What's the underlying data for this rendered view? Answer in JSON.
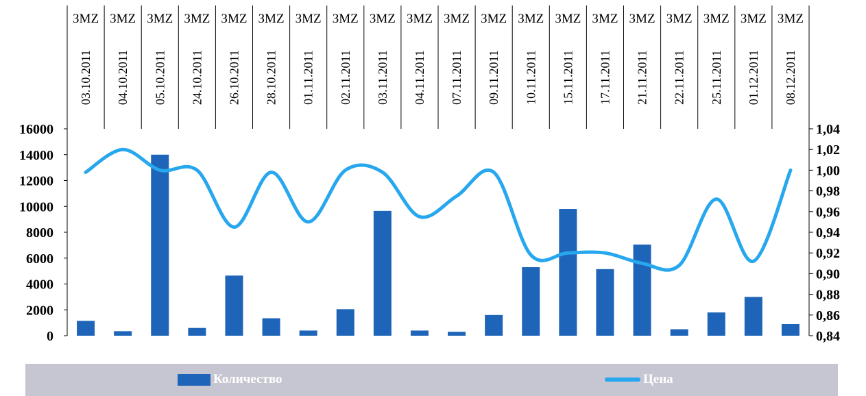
{
  "chart_data": {
    "type": "bar+line",
    "categories": [
      "03.10.2011",
      "04.10.2011",
      "05.10.2011",
      "24.10.2011",
      "26.10.2011",
      "28.10.2011",
      "01.11.2011",
      "02.11.2011",
      "03.11.2011",
      "04.11.2011",
      "07.11.2011",
      "09.11.2011",
      "10.11.2011",
      "15.11.2011",
      "17.11.2011",
      "21.11.2011",
      "22.11.2011",
      "25.11.2011",
      "01.12.2011",
      "08.12.2011"
    ],
    "category_headers": [
      "ЗМZ",
      "ЗМZ",
      "ЗМZ",
      "ЗМZ",
      "ЗМZ",
      "ЗМZ",
      "ЗМZ",
      "ЗМZ",
      "ЗМZ",
      "ЗМZ",
      "ЗМZ",
      "ЗМZ",
      "ЗМZ",
      "ЗМZ",
      "ЗМZ",
      "ЗМZ",
      "ЗМZ",
      "ЗМZ",
      "ЗМZ",
      "ЗМZ"
    ],
    "series": [
      {
        "name": "Количество",
        "type": "bar",
        "axis": "left",
        "values": [
          1150,
          350,
          14000,
          600,
          4650,
          1350,
          400,
          2050,
          9650,
          400,
          300,
          1600,
          5300,
          9800,
          5150,
          7050,
          500,
          1800,
          3000,
          900
        ]
      },
      {
        "name": "Цена",
        "type": "line",
        "axis": "right",
        "values": [
          0.998,
          1.02,
          1.0,
          1.0,
          0.945,
          0.998,
          0.95,
          1.0,
          0.998,
          0.955,
          0.975,
          0.998,
          0.918,
          0.92,
          0.92,
          0.91,
          0.908,
          0.972,
          0.912,
          1.0
        ]
      }
    ],
    "left_axis": {
      "min": 0,
      "max": 16000,
      "ticks": [
        "0",
        "2000",
        "4000",
        "6000",
        "8000",
        "10000",
        "12000",
        "14000",
        "16000"
      ]
    },
    "right_axis": {
      "min": 0.84,
      "max": 1.04,
      "ticks": [
        "0,84",
        "0,86",
        "0,88",
        "0,90",
        "0,92",
        "0,94",
        "0,96",
        "0,98",
        "1,00",
        "1,02",
        "1,04"
      ]
    },
    "legend_position": "bottom",
    "colors": {
      "bar": "#1e64b8",
      "line": "#27a7ee",
      "legend_bg": "#c6c6d2"
    }
  }
}
